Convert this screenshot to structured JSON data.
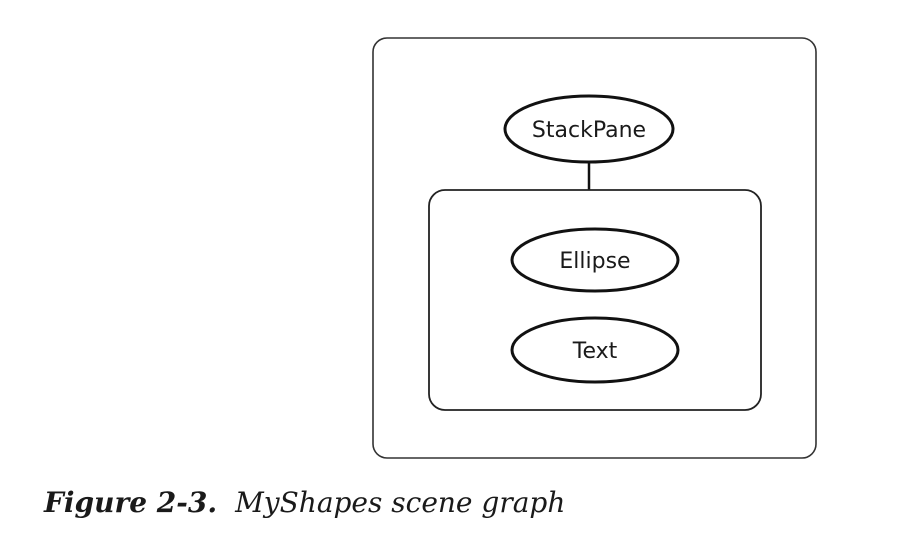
{
  "diagram": {
    "nodes": {
      "root": "StackPane",
      "child1": "Ellipse",
      "child2": "Text"
    }
  },
  "caption": {
    "number": "Figure 2-3.",
    "title": "MyShapes scene graph"
  }
}
